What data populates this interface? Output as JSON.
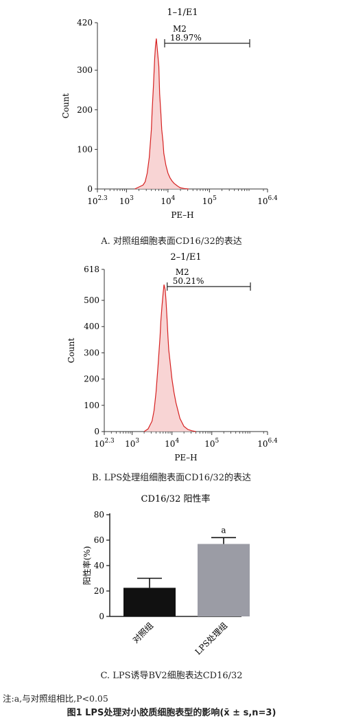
{
  "chart_data": [
    {
      "type": "histogram",
      "title": "1–1/E1",
      "ylabel": "Count",
      "xlabel": "PE–H",
      "yticks": [
        "0",
        "100",
        "200",
        "300",
        "420"
      ],
      "ytick_values": [
        0,
        100,
        200,
        300,
        420
      ],
      "ylim": [
        0,
        420
      ],
      "xscale": "log",
      "xticks": [
        {
          "base": "10",
          "exp": "2.3",
          "value": 2.3
        },
        {
          "base": "10",
          "exp": "3",
          "value": 3
        },
        {
          "base": "10",
          "exp": "4",
          "value": 4
        },
        {
          "base": "10",
          "exp": "5",
          "value": 5
        },
        {
          "base": "10",
          "exp": "6.4",
          "value": 6.4
        }
      ],
      "xlim": [
        2.3,
        6.4
      ],
      "gate": {
        "name": "M2",
        "percent": "18.97%",
        "from": 3.92,
        "to": 5.97
      },
      "series": [
        {
          "x": [
            3.2,
            3.3,
            3.4,
            3.45,
            3.5,
            3.55,
            3.6,
            3.62,
            3.65,
            3.68,
            3.7,
            3.72,
            3.75,
            3.78,
            3.8,
            3.83,
            3.85,
            3.88,
            3.9,
            3.95,
            4.0,
            4.05,
            4.1,
            4.15,
            4.2,
            4.25,
            4.3,
            4.4,
            4.5
          ],
          "y": [
            0,
            5,
            10,
            18,
            40,
            80,
            150,
            200,
            260,
            330,
            362,
            380,
            345,
            310,
            240,
            190,
            150,
            120,
            90,
            60,
            40,
            28,
            20,
            14,
            10,
            6,
            3,
            1,
            0
          ]
        }
      ],
      "caption": "A. 对照组细胞表面CD16/32的表达"
    },
    {
      "type": "histogram",
      "title": "2–1/E1",
      "ylabel": "Count",
      "xlabel": "PE–H",
      "yticks": [
        "0",
        "100",
        "200",
        "300",
        "400",
        "500",
        "618"
      ],
      "ytick_values": [
        0,
        100,
        200,
        300,
        400,
        500,
        618
      ],
      "ylim": [
        0,
        618
      ],
      "xscale": "log",
      "xticks": [
        {
          "base": "10",
          "exp": "2.3",
          "value": 2.3
        },
        {
          "base": "10",
          "exp": "3",
          "value": 3
        },
        {
          "base": "10",
          "exp": "4",
          "value": 4
        },
        {
          "base": "10",
          "exp": "5",
          "value": 5
        },
        {
          "base": "10",
          "exp": "6.4",
          "value": 6.4
        }
      ],
      "xlim": [
        2.3,
        6.4
      ],
      "gate": {
        "name": "M2",
        "percent": "50.21%",
        "from": 3.88,
        "to": 5.97
      },
      "series": [
        {
          "x": [
            3.3,
            3.4,
            3.5,
            3.55,
            3.6,
            3.65,
            3.7,
            3.72,
            3.75,
            3.78,
            3.8,
            3.83,
            3.85,
            3.88,
            3.9,
            3.92,
            3.95,
            4.0,
            4.05,
            4.1,
            4.15,
            4.2,
            4.25,
            4.3,
            4.4,
            4.5,
            4.6
          ],
          "y": [
            0,
            10,
            40,
            80,
            150,
            250,
            360,
            420,
            480,
            530,
            560,
            540,
            500,
            420,
            360,
            310,
            270,
            200,
            150,
            110,
            80,
            50,
            35,
            20,
            8,
            3,
            0
          ]
        }
      ],
      "caption": "B. LPS处理组细胞表面CD16/32的表达"
    },
    {
      "type": "bar",
      "title": "CD16/32 阳性率",
      "ylabel": "阳性率(%)",
      "yticks": [
        "0",
        "20",
        "40",
        "60",
        "80"
      ],
      "ytick_values": [
        0,
        20,
        40,
        60,
        80
      ],
      "ylim": [
        0,
        80
      ],
      "categories": [
        "对照组",
        "LPS处理组"
      ],
      "values": [
        22.5,
        57
      ],
      "errors": [
        7.5,
        5
      ],
      "colors": [
        "#111111",
        "#9b9ca5"
      ],
      "annotations": [
        "",
        "a"
      ],
      "caption": "C. LPS诱导BV2细胞表达CD16/32"
    }
  ],
  "note": "注:a,与对照组相比,P<0.05",
  "figure_caption": "图1  LPS处理对小胶质细胞表型的影响(x̄ ± s,n=3)"
}
